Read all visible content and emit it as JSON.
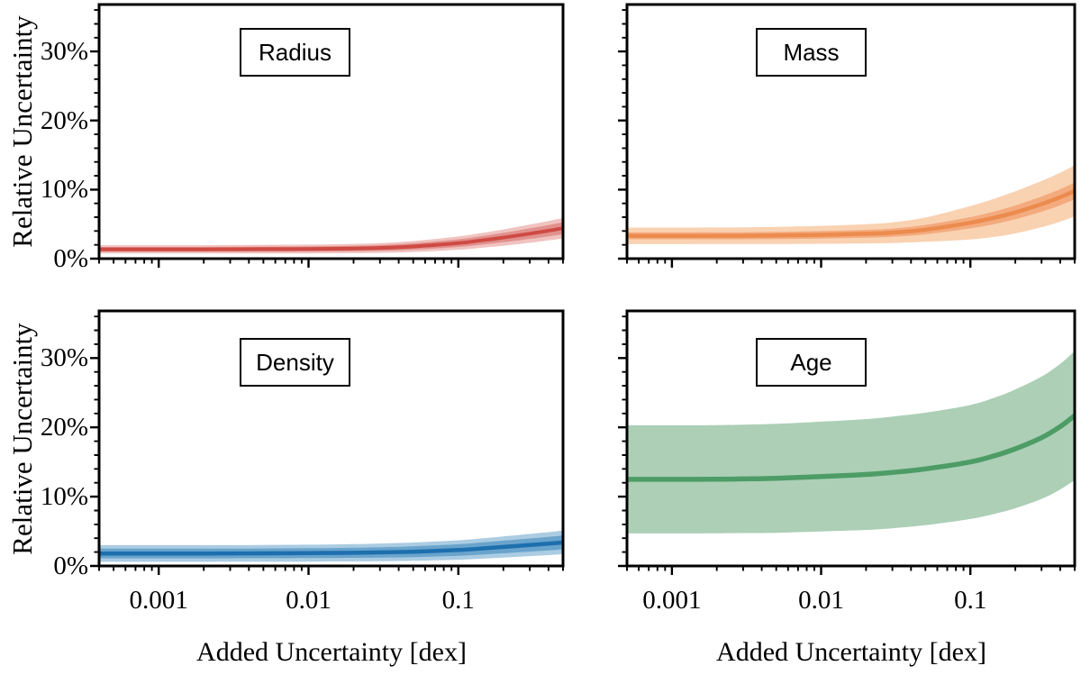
{
  "chart_data": {
    "type": "line",
    "layout": "2x2 grid of panels, log-scale shared x-axis, bands show uncertainty intervals",
    "x_scale": "log",
    "grid": false,
    "xlabel": "Added Uncertainty [dex]",
    "ylabel": "Relative Uncertainty",
    "x_tick_labels": [
      "0.001",
      "0.01",
      "0.1"
    ],
    "x_tick_values": [
      0.001,
      0.01,
      0.1
    ],
    "y_tick_labels": [
      "0%",
      "10%",
      "20%",
      "30%"
    ],
    "y_tick_values": [
      0,
      10,
      20,
      30
    ],
    "y_minor_step": 2,
    "ylim": [
      0,
      36.8
    ],
    "axis_color": "#000000",
    "panels": [
      {
        "label": "Radius",
        "line_color": "#cf4a44",
        "inner_band_color": "#e1918d",
        "outer_band_color": "#f0c3c0",
        "line_width": 4,
        "xlim": [
          0.0004,
          0.5
        ],
        "x": [
          0.0004,
          0.0005,
          0.001,
          0.002,
          0.003,
          0.005,
          0.01,
          0.02,
          0.03,
          0.05,
          0.1,
          0.15,
          0.2,
          0.3,
          0.4,
          0.5
        ],
        "mid": [
          1.35,
          1.35,
          1.35,
          1.35,
          1.36,
          1.38,
          1.4,
          1.47,
          1.55,
          1.76,
          2.25,
          2.7,
          3.05,
          3.62,
          4.05,
          4.4
        ],
        "inner_hw": [
          0.35,
          0.35,
          0.35,
          0.35,
          0.35,
          0.36,
          0.37,
          0.39,
          0.42,
          0.46,
          0.55,
          0.62,
          0.68,
          0.76,
          0.82,
          0.87
        ],
        "outer_hw": [
          0.6,
          0.6,
          0.6,
          0.6,
          0.61,
          0.62,
          0.64,
          0.67,
          0.71,
          0.79,
          0.96,
          1.08,
          1.18,
          1.32,
          1.4,
          1.48
        ]
      },
      {
        "label": "Mass",
        "line_color": "#ec8b4e",
        "inner_band_color": "#f3ab7e",
        "outer_band_color": "#f9d2b2",
        "line_width": 4.5,
        "xlim": [
          0.0005,
          0.5
        ],
        "x": [
          0.0005,
          0.001,
          0.002,
          0.003,
          0.005,
          0.01,
          0.02,
          0.03,
          0.05,
          0.1,
          0.15,
          0.2,
          0.3,
          0.4,
          0.5
        ],
        "mid": [
          3.3,
          3.3,
          3.31,
          3.32,
          3.36,
          3.45,
          3.6,
          3.76,
          4.2,
          5.2,
          6.0,
          6.7,
          7.9,
          8.9,
          9.8
        ],
        "inner_hw": [
          0.5,
          0.5,
          0.5,
          0.51,
          0.52,
          0.54,
          0.57,
          0.6,
          0.68,
          0.82,
          0.92,
          1.0,
          1.1,
          1.16,
          1.22
        ],
        "outer_hw": [
          1.2,
          1.2,
          1.2,
          1.21,
          1.24,
          1.3,
          1.4,
          1.5,
          1.76,
          2.42,
          2.8,
          3.05,
          3.35,
          3.55,
          3.7
        ]
      },
      {
        "label": "Density",
        "line_color": "#1d6fae",
        "inner_band_color": "#6aa4cc",
        "outer_band_color": "#abcce2",
        "line_width": 4.5,
        "xlim": [
          0.0004,
          0.5
        ],
        "x": [
          0.0004,
          0.0005,
          0.001,
          0.002,
          0.003,
          0.005,
          0.01,
          0.02,
          0.03,
          0.05,
          0.1,
          0.15,
          0.2,
          0.3,
          0.4,
          0.5
        ],
        "mid": [
          1.8,
          1.8,
          1.8,
          1.8,
          1.81,
          1.82,
          1.85,
          1.9,
          1.96,
          2.06,
          2.3,
          2.55,
          2.74,
          3.02,
          3.22,
          3.4
        ],
        "inner_hw": [
          0.7,
          0.7,
          0.7,
          0.7,
          0.7,
          0.7,
          0.71,
          0.73,
          0.75,
          0.78,
          0.83,
          0.88,
          0.91,
          0.95,
          0.98,
          1.0
        ],
        "outer_hw": [
          1.2,
          1.2,
          1.2,
          1.2,
          1.2,
          1.21,
          1.22,
          1.25,
          1.28,
          1.32,
          1.4,
          1.47,
          1.53,
          1.6,
          1.66,
          1.7
        ]
      },
      {
        "label": "Age",
        "line_color": "#4d9c66",
        "inner_band_color": null,
        "outer_band_color": "#accfb6",
        "line_width": 5.5,
        "xlim": [
          0.0005,
          0.5
        ],
        "x": [
          0.0005,
          0.001,
          0.002,
          0.003,
          0.005,
          0.01,
          0.02,
          0.03,
          0.05,
          0.1,
          0.15,
          0.2,
          0.3,
          0.4,
          0.5
        ],
        "mid": [
          12.5,
          12.5,
          12.52,
          12.56,
          12.65,
          12.9,
          13.2,
          13.5,
          14.0,
          15.0,
          16.0,
          16.9,
          18.5,
          20.1,
          21.7
        ],
        "inner_hw": null,
        "outer_hw": [
          7.8,
          7.8,
          7.8,
          7.82,
          7.86,
          7.92,
          8.0,
          8.06,
          8.12,
          8.22,
          8.4,
          8.57,
          8.82,
          9.06,
          9.3
        ]
      }
    ]
  }
}
